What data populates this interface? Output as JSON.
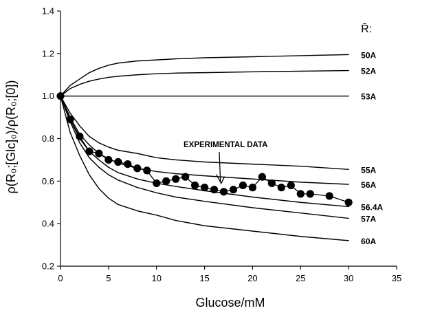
{
  "chart_data": {
    "type": "line",
    "title": "",
    "xlabel": "Glucose/mM",
    "ylabel": "ρ(R₀;[Glc]₀)/ρ(R₀;[0])",
    "xlim": [
      0,
      35
    ],
    "ylim": [
      0.2,
      1.4
    ],
    "x_ticks": [
      0,
      5,
      10,
      15,
      20,
      25,
      30,
      35
    ],
    "y_ticks": [
      0.2,
      0.4,
      0.6,
      0.8,
      1.0,
      1.2,
      1.4
    ],
    "x_tick_labels": [
      "0",
      "5",
      "10",
      "15",
      "20",
      "25",
      "30",
      "35"
    ],
    "y_tick_labels": [
      "0.2",
      "0.4",
      "0.6",
      "0.8",
      "1.0",
      "1.2",
      "1.4"
    ],
    "grid": false,
    "legend": {
      "title": "R̄:",
      "placement": "right-of-curves"
    },
    "annotations": [
      {
        "text": "EXPERIMENTAL DATA",
        "target_x": 16.8,
        "target_y": 0.56
      }
    ],
    "series": [
      {
        "name": "50A",
        "kind": "line",
        "x": [
          0,
          1,
          2,
          3,
          4,
          5,
          6,
          8,
          10,
          12,
          15,
          20,
          25,
          30
        ],
        "y": [
          1.0,
          1.05,
          1.08,
          1.11,
          1.13,
          1.145,
          1.155,
          1.165,
          1.17,
          1.175,
          1.18,
          1.185,
          1.19,
          1.195
        ]
      },
      {
        "name": "52A",
        "kind": "line",
        "x": [
          0,
          1,
          2,
          3,
          4,
          5,
          6,
          8,
          10,
          12,
          15,
          20,
          25,
          30
        ],
        "y": [
          1.0,
          1.035,
          1.055,
          1.07,
          1.08,
          1.088,
          1.093,
          1.1,
          1.105,
          1.108,
          1.11,
          1.114,
          1.117,
          1.12
        ]
      },
      {
        "name": "53A",
        "kind": "line",
        "x": [
          0,
          5,
          10,
          15,
          20,
          25,
          30
        ],
        "y": [
          1.0,
          1.0,
          1.0,
          1.0,
          1.0,
          1.0,
          1.0
        ]
      },
      {
        "name": "55A",
        "kind": "line",
        "x": [
          0,
          1,
          2,
          3,
          4,
          5,
          6,
          8,
          10,
          12,
          15,
          20,
          25,
          30
        ],
        "y": [
          1.0,
          0.92,
          0.86,
          0.81,
          0.78,
          0.76,
          0.745,
          0.73,
          0.71,
          0.7,
          0.69,
          0.68,
          0.67,
          0.655
        ]
      },
      {
        "name": "56A",
        "kind": "line",
        "x": [
          0,
          1,
          2,
          3,
          4,
          5,
          6,
          8,
          10,
          12,
          15,
          20,
          25,
          30
        ],
        "y": [
          1.0,
          0.9,
          0.82,
          0.77,
          0.73,
          0.705,
          0.685,
          0.66,
          0.645,
          0.635,
          0.625,
          0.61,
          0.595,
          0.585
        ]
      },
      {
        "name": "56.4A",
        "kind": "line",
        "x": [
          0,
          1,
          2,
          3,
          4,
          5,
          6,
          8,
          10,
          12,
          15,
          20,
          25,
          30
        ],
        "y": [
          1.0,
          0.89,
          0.8,
          0.74,
          0.7,
          0.665,
          0.64,
          0.61,
          0.59,
          0.575,
          0.555,
          0.525,
          0.5,
          0.48
        ]
      },
      {
        "name": "57A",
        "kind": "line",
        "x": [
          0,
          1,
          2,
          3,
          4,
          5,
          6,
          8,
          10,
          12,
          15,
          20,
          25,
          30
        ],
        "y": [
          1.0,
          0.88,
          0.78,
          0.71,
          0.665,
          0.63,
          0.605,
          0.57,
          0.545,
          0.525,
          0.505,
          0.475,
          0.45,
          0.425
        ]
      },
      {
        "name": "60A",
        "kind": "line",
        "x": [
          0,
          1,
          2,
          3,
          4,
          5,
          6,
          8,
          10,
          12,
          15,
          20,
          25,
          30
        ],
        "y": [
          1.0,
          0.83,
          0.72,
          0.63,
          0.565,
          0.52,
          0.49,
          0.46,
          0.44,
          0.415,
          0.39,
          0.365,
          0.34,
          0.32
        ]
      },
      {
        "name": "EXPERIMENTAL DATA",
        "kind": "points",
        "x": [
          0,
          1,
          2,
          3,
          4,
          5,
          6,
          7,
          8,
          9,
          10,
          11,
          12,
          13,
          14,
          15,
          16,
          17,
          18,
          19,
          20,
          21,
          22,
          23,
          24,
          25,
          26,
          28,
          30
        ],
        "y": [
          1.0,
          0.89,
          0.81,
          0.74,
          0.73,
          0.7,
          0.69,
          0.68,
          0.66,
          0.65,
          0.59,
          0.6,
          0.61,
          0.62,
          0.58,
          0.57,
          0.56,
          0.55,
          0.56,
          0.58,
          0.57,
          0.62,
          0.59,
          0.57,
          0.58,
          0.54,
          0.54,
          0.53,
          0.5
        ]
      }
    ]
  }
}
